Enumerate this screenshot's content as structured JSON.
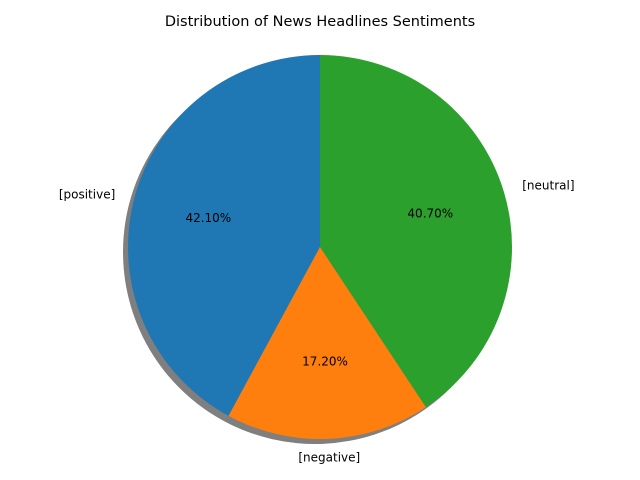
{
  "chart_data": {
    "type": "pie",
    "title": "Distribution of News Headlines Sentiments",
    "slices": [
      {
        "label": "[positive]",
        "value": 42.1,
        "value_label": "42.10%",
        "color": "#1f77b4"
      },
      {
        "label": "[negative]",
        "value": 17.2,
        "value_label": "17.20%",
        "color": "#ff7f0e"
      },
      {
        "label": "[neutral]",
        "value": 40.7,
        "value_label": "40.70%",
        "color": "#2ca02c"
      }
    ],
    "start_angle_deg": 90,
    "direction": "counterclockwise",
    "shadow": true
  }
}
